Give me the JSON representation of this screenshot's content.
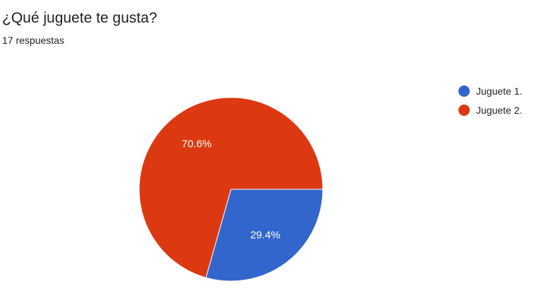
{
  "form": {
    "question": "¿Qué juguete te gusta?",
    "response_count": "17 respuestas"
  },
  "chart_data": {
    "type": "pie",
    "categories": [
      "Juguete 1.",
      "Juguete 2."
    ],
    "values": [
      29.4,
      70.6
    ],
    "value_labels": [
      "29.4%",
      "70.6%"
    ],
    "colors": [
      "#3366cc",
      "#dc3912"
    ],
    "legend_position": "right"
  }
}
